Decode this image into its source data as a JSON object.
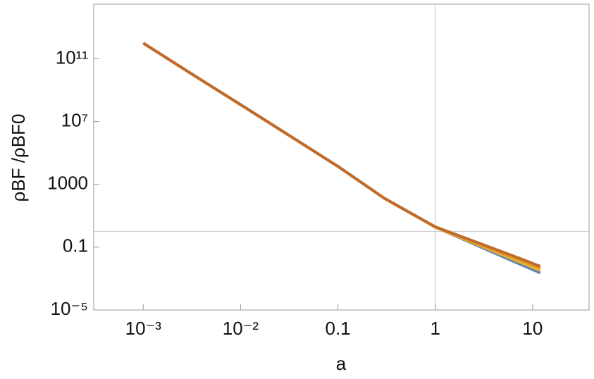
{
  "chart_data": {
    "type": "line",
    "xlabel": "a",
    "ylabel": "ρBF /ρBF0",
    "x": [
      0.001,
      0.003,
      0.01,
      0.03,
      0.1,
      0.3,
      1,
      2,
      4,
      8,
      12
    ],
    "series": [
      {
        "name": "blue",
        "color": "#5e81b5",
        "values": [
          1000000000000.0,
          13000000000.0,
          120000000.0,
          1600000.0,
          14000,
          130,
          1.9,
          0.29,
          0.044,
          0.0068,
          0.0023
        ]
      },
      {
        "name": "gold",
        "color": "#e8b52e",
        "values": [
          1000000000000.0,
          13000000000.0,
          120000000.0,
          1600000.0,
          14000,
          130,
          1.9,
          0.32,
          0.055,
          0.0093,
          0.0033
        ]
      },
      {
        "name": "orange",
        "color": "#e19c24",
        "values": [
          1000000000000.0,
          13000000000.0,
          120000000.0,
          1600000.0,
          14000,
          130,
          1.9,
          0.35,
          0.065,
          0.012,
          0.0046
        ]
      },
      {
        "name": "brown",
        "color": "#c06b2c",
        "values": [
          1000000000000.0,
          13000000000.0,
          120000000.0,
          1600000.0,
          14000,
          130,
          2.0,
          0.4,
          0.08,
          0.016,
          0.006
        ]
      }
    ],
    "xscale": "log",
    "yscale": "log",
    "xlim": [
      0.00031,
      38
    ],
    "ylim": [
      1e-05,
      300000000000000.0
    ],
    "xticks": [
      {
        "value": 0.001,
        "label": "10⁻³"
      },
      {
        "value": 0.01,
        "label": "10⁻²"
      },
      0.1,
      1,
      10
    ],
    "yticks": [
      {
        "value": 1e-05,
        "label": "10⁻⁵"
      },
      0.1,
      1000,
      {
        "value": 10000000.0,
        "label": "10⁷"
      },
      {
        "value": 100000000000.0,
        "label": "10¹¹"
      }
    ]
  }
}
